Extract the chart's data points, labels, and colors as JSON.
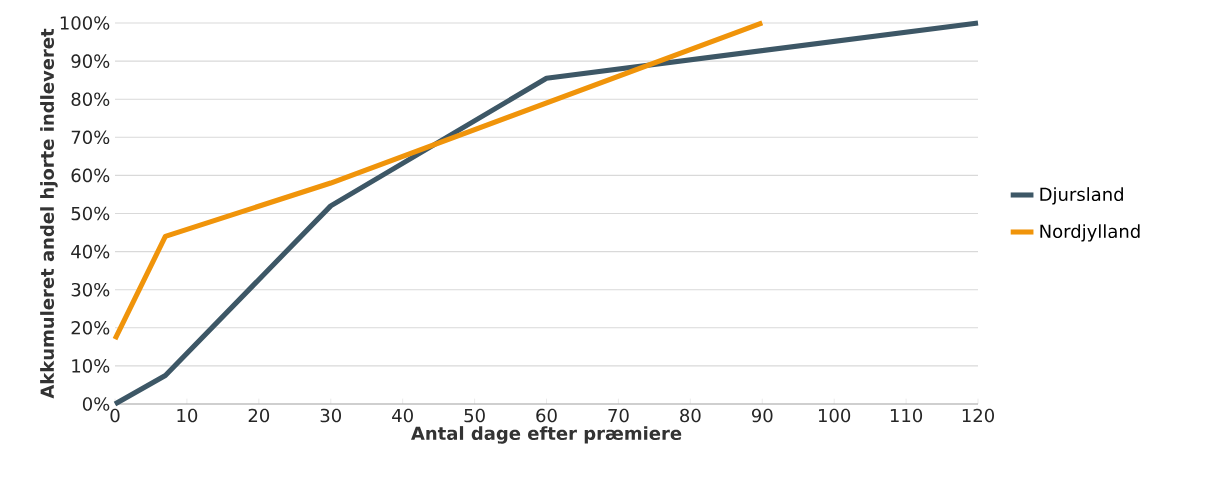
{
  "chart_data": {
    "type": "line",
    "xlabel": "Antal dage efter præmiere",
    "ylabel": "Akkumuleret andel hjorte indleveret",
    "xlim": [
      0,
      120
    ],
    "ylim": [
      0,
      100
    ],
    "xticks": [
      0,
      10,
      20,
      30,
      40,
      50,
      60,
      70,
      80,
      90,
      100,
      110,
      120
    ],
    "yticks": [
      {
        "value": 0,
        "label": "0%"
      },
      {
        "value": 10,
        "label": "10%"
      },
      {
        "value": 20,
        "label": "20%"
      },
      {
        "value": 30,
        "label": "30%"
      },
      {
        "value": 40,
        "label": "40%"
      },
      {
        "value": 50,
        "label": "50%"
      },
      {
        "value": 60,
        "label": "60%"
      },
      {
        "value": 70,
        "label": "70%"
      },
      {
        "value": 80,
        "label": "80%"
      },
      {
        "value": 90,
        "label": "90%"
      },
      {
        "value": 100,
        "label": "100%"
      }
    ],
    "grid": "y",
    "legend": "right",
    "marker": "none",
    "line_style": "solid",
    "series": [
      {
        "name": "Djursland",
        "color": "#3d5766",
        "x": [
          0,
          7,
          30,
          60,
          120
        ],
        "values": [
          0,
          7.5,
          52,
          85.5,
          100
        ]
      },
      {
        "name": "Nordjylland",
        "color": "#f0940a",
        "x": [
          0,
          7,
          30,
          90
        ],
        "values": [
          17,
          44,
          58,
          100
        ]
      }
    ]
  }
}
